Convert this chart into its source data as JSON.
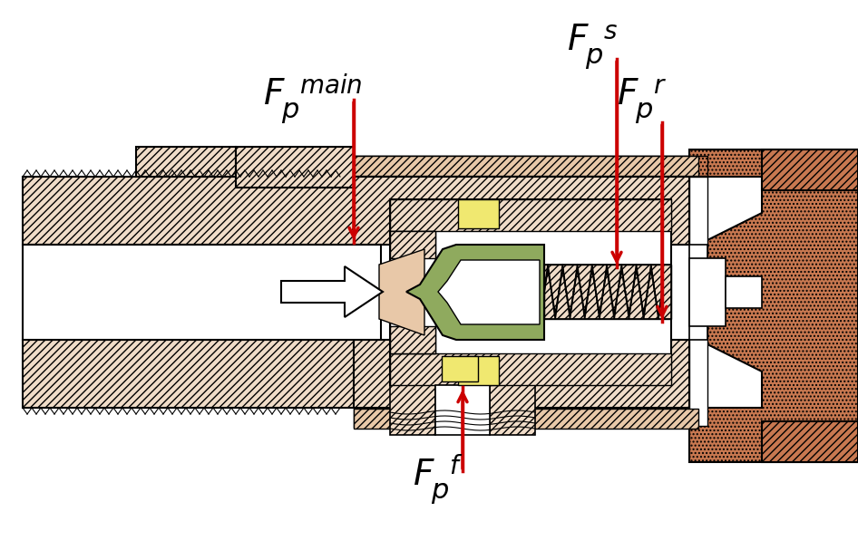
{
  "bg_color": "#ffffff",
  "body_fill": "#f0dcc8",
  "brown_fill": "#c87850",
  "green_fill": "#8faa5e",
  "yellow_fill": "#f0e870",
  "tan_fill": "#e8c8a8",
  "arrow_color": "#cc0000",
  "hatch_main": "////",
  "hatch_brown": "....",
  "figsize": [
    9.46,
    6.07
  ],
  "dpi": 100
}
